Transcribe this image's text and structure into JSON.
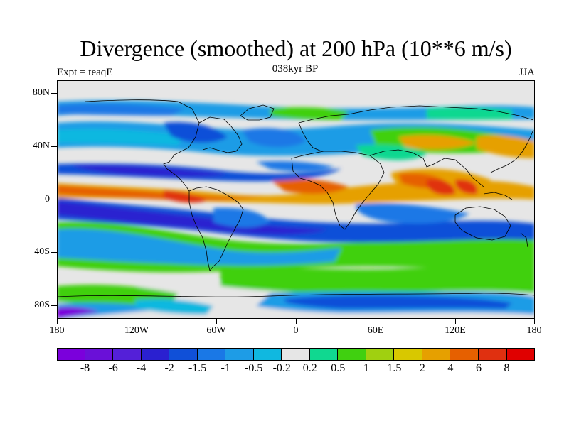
{
  "title": "Divergence (smoothed) at 200 hPa (10**6 m/s)",
  "subtitle_left": "Expt = teaqE",
  "subtitle_center": "038kyr BP",
  "subtitle_right": "JJA",
  "map": {
    "lon_range": [
      -180,
      180
    ],
    "lat_range": [
      -90,
      90
    ],
    "y_ticks": [
      {
        "value": 80,
        "label": "80N"
      },
      {
        "value": 40,
        "label": "40N"
      },
      {
        "value": 0,
        "label": "0"
      },
      {
        "value": -40,
        "label": "40S"
      },
      {
        "value": -80,
        "label": "80S"
      }
    ],
    "x_ticks": [
      {
        "value": -180,
        "label": "180"
      },
      {
        "value": -120,
        "label": "120W"
      },
      {
        "value": -60,
        "label": "60W"
      },
      {
        "value": 0,
        "label": "0"
      },
      {
        "value": 60,
        "label": "60E"
      },
      {
        "value": 120,
        "label": "120E"
      },
      {
        "value": 180,
        "label": "180"
      }
    ],
    "background_color": "#e6e6e6",
    "coast_color": "#000000"
  },
  "colorbar": {
    "colors": [
      "#7b00dc",
      "#6a10d8",
      "#5420d8",
      "#2a20d0",
      "#1050d8",
      "#1a78e6",
      "#1e9ce6",
      "#10b8e0",
      "#e6e6e6",
      "#10d890",
      "#40d010",
      "#a0d010",
      "#d8c800",
      "#e6a000",
      "#e66000",
      "#e03010",
      "#e00000"
    ],
    "labels": [
      "-8",
      "-6",
      "-4",
      "-2",
      "-1.5",
      "-1",
      "-0.5",
      "-0.2",
      "0.2",
      "0.5",
      "1",
      "1.5",
      "2",
      "4",
      "6",
      "8"
    ]
  }
}
